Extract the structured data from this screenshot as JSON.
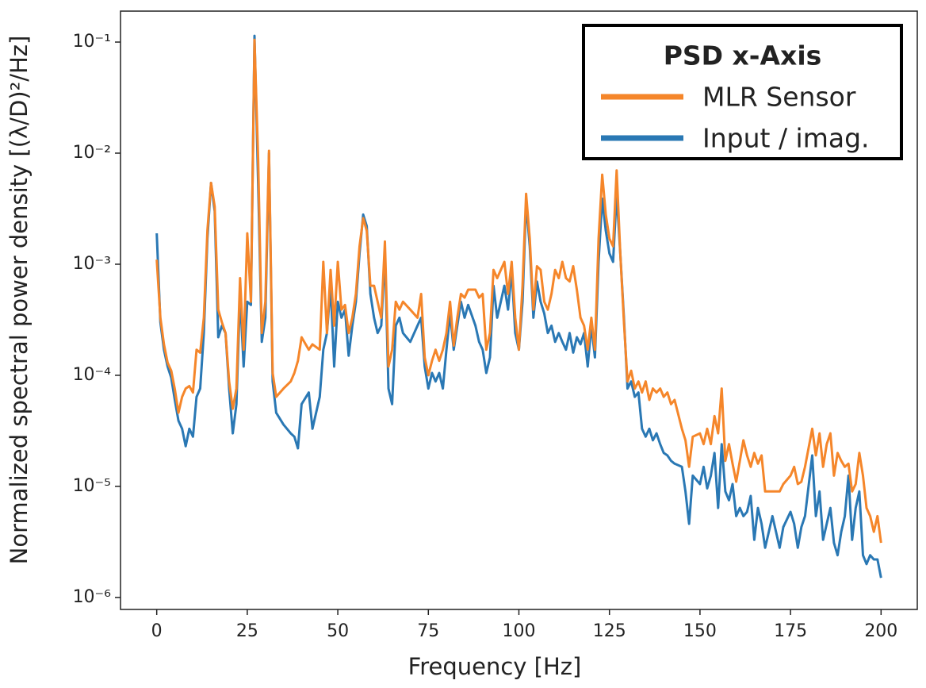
{
  "chart_data": {
    "type": "line",
    "x_label": "Frequency [Hz]",
    "y_label": "Normalized spectral  power density [(λ/D)²/Hz]",
    "legend_title": "PSD x-Axis",
    "legend": "upper right",
    "log_y": true,
    "xlim": [
      -10,
      210
    ],
    "ylim": [
      7.8e-07,
      0.19
    ],
    "xticks": [
      0,
      25,
      50,
      75,
      100,
      125,
      150,
      175,
      200
    ],
    "yticks": [
      {
        "value": 1e-06,
        "label": "10⁻⁶"
      },
      {
        "value": 1e-05,
        "label": "10⁻⁵"
      },
      {
        "value": 0.0001,
        "label": "10⁻⁴"
      },
      {
        "value": 0.001,
        "label": "10⁻³"
      },
      {
        "value": 0.01,
        "label": "10⁻²"
      },
      {
        "value": 0.1,
        "label": "10⁻¹"
      }
    ],
    "x": [
      0,
      1,
      2,
      3,
      4,
      5,
      6,
      7,
      8,
      9,
      10,
      11,
      12,
      13,
      14,
      15,
      16,
      17,
      18,
      19,
      20,
      21,
      22,
      23,
      24,
      25,
      26,
      27,
      28,
      29,
      30,
      31,
      32,
      33,
      35,
      37,
      38,
      39,
      40,
      42,
      43,
      45,
      46,
      47,
      48,
      49,
      50,
      51,
      52,
      53,
      54,
      55,
      56,
      57,
      58,
      59,
      60,
      61,
      62,
      63,
      64,
      65,
      66,
      67,
      68,
      70,
      72,
      73,
      74,
      75,
      76,
      77,
      78,
      79,
      80,
      81,
      82,
      83,
      84,
      85,
      86,
      88,
      89,
      90,
      91,
      92,
      93,
      94,
      95,
      96,
      97,
      98,
      99,
      100,
      101,
      102,
      103,
      104,
      105,
      106,
      107,
      108,
      109,
      110,
      111,
      112,
      113,
      114,
      115,
      116,
      117,
      118,
      119,
      120,
      121,
      122,
      123,
      124,
      125,
      126,
      127,
      128,
      129,
      130,
      131,
      132,
      133,
      134,
      135,
      136,
      137,
      138,
      139,
      140,
      141,
      142,
      143,
      145,
      146,
      147,
      148,
      150,
      151,
      152,
      153,
      154,
      155,
      156,
      157,
      158,
      159,
      160,
      161,
      162,
      163,
      164,
      165,
      166,
      167,
      168,
      170,
      172,
      173,
      175,
      176,
      177,
      178,
      179,
      181,
      182,
      183,
      184,
      185,
      186,
      187,
      188,
      189,
      190,
      191,
      192,
      193,
      194,
      195,
      196,
      197,
      198,
      199,
      200
    ],
    "series": [
      {
        "name": "MLR Sensor",
        "color": "#f5862a",
        "values": [
          0.0011,
          0.00033,
          0.00019,
          0.00013,
          0.00011,
          7.5e-05,
          4.6e-05,
          6.4e-05,
          7.6e-05,
          8e-05,
          7e-05,
          0.00017,
          0.00016,
          0.00033,
          0.002,
          0.0054,
          0.0033,
          0.00039,
          0.0003,
          0.00024,
          8.8e-05,
          5e-05,
          7.6e-05,
          0.00075,
          0.00017,
          0.0019,
          0.00046,
          0.105,
          0.0089,
          0.00024,
          0.00046,
          0.0105,
          0.000105,
          6.4e-05,
          7.6e-05,
          8.8e-05,
          0.000105,
          0.000135,
          0.00022,
          0.00017,
          0.00019,
          0.00017,
          0.00105,
          0.00024,
          0.00089,
          0.00028,
          0.00105,
          0.00039,
          0.00043,
          0.00024,
          0.00033,
          0.00054,
          0.00145,
          0.0026,
          0.002,
          0.00064,
          0.00064,
          0.00046,
          0.00033,
          0.0016,
          0.00012,
          0.00017,
          0.00046,
          0.00039,
          0.00046,
          0.00039,
          0.00033,
          0.00054,
          0.000145,
          0.0001,
          0.000135,
          0.00017,
          0.000135,
          0.00017,
          0.00024,
          0.00046,
          0.000185,
          0.00033,
          0.00054,
          0.0005,
          0.00059,
          0.00059,
          0.0005,
          0.00054,
          0.00017,
          0.00024,
          0.00089,
          0.00075,
          0.00089,
          0.00105,
          0.00054,
          0.00105,
          0.00033,
          0.00017,
          0.00064,
          0.0043,
          0.0017,
          0.00039,
          0.00096,
          0.00089,
          0.00046,
          0.00039,
          0.00054,
          0.00089,
          0.00075,
          0.00105,
          0.00075,
          0.0007,
          0.00096,
          0.00059,
          0.00033,
          0.00028,
          0.00017,
          0.00033,
          0.00017,
          0.0017,
          0.0064,
          0.0028,
          0.0017,
          0.00145,
          0.007,
          0.00125,
          0.0003,
          8.8e-05,
          0.00011,
          7.6e-05,
          8.8e-05,
          7e-05,
          8.8e-05,
          6e-05,
          7.6e-05,
          7e-05,
          7.6e-05,
          6.4e-05,
          7e-05,
          5.5e-05,
          6e-05,
          3.3e-05,
          2.6e-05,
          1.5e-05,
          2.8e-05,
          3e-05,
          2.4e-05,
          3.3e-05,
          2.4e-05,
          4.3e-05,
          3e-05,
          7.6e-05,
          1.7e-05,
          2.4e-05,
          1.6e-05,
          1.1e-05,
          1.7e-05,
          2.6e-05,
          1.9e-05,
          1.5e-05,
          2e-05,
          1.6e-05,
          1.9e-05,
          9e-06,
          9e-06,
          9e-06,
          1.05e-05,
          1.25e-05,
          1.5e-05,
          1.05e-05,
          1.1e-05,
          1.5e-05,
          3.3e-05,
          1.9e-05,
          3e-05,
          1.5e-05,
          2.4e-05,
          3e-05,
          1.25e-05,
          2e-05,
          1.7e-05,
          1.5e-05,
          1.6e-05,
          9e-06,
          1.05e-05,
          2e-05,
          1.25e-05,
          6.4e-06,
          5.4e-06,
          3.9e-06,
          5.4e-06,
          3.1e-06
        ]
      },
      {
        "name": "Input / imag.",
        "color": "#2a78b4",
        "values": [
          0.0019,
          0.0003,
          0.00017,
          0.00012,
          9.5e-05,
          6e-05,
          3.9e-05,
          3.3e-05,
          2.3e-05,
          3.3e-05,
          2.8e-05,
          6.4e-05,
          7.6e-05,
          0.00024,
          0.0017,
          0.0054,
          0.003,
          0.00022,
          0.00028,
          0.00024,
          7.6e-05,
          3e-05,
          5.5e-05,
          0.00054,
          0.00012,
          0.00046,
          0.00043,
          0.114,
          0.0054,
          0.0002,
          0.00033,
          0.01,
          8.8e-05,
          4.6e-05,
          3.6e-05,
          3e-05,
          2.8e-05,
          2.2e-05,
          5.5e-05,
          7e-05,
          3.3e-05,
          6.4e-05,
          0.00017,
          0.00024,
          0.00064,
          0.00012,
          0.00046,
          0.00033,
          0.00039,
          0.00015,
          0.00028,
          0.00046,
          0.00125,
          0.0028,
          0.0022,
          0.00054,
          0.00033,
          0.00024,
          0.00028,
          0.00125,
          7.6e-05,
          5.5e-05,
          0.00028,
          0.00033,
          0.00024,
          0.0002,
          0.00028,
          0.00033,
          0.00012,
          7.6e-05,
          0.000105,
          8.8e-05,
          0.000105,
          7.6e-05,
          0.00017,
          0.00036,
          0.00017,
          0.00028,
          0.00046,
          0.00033,
          0.00043,
          0.00028,
          0.0002,
          0.00017,
          0.000105,
          0.000145,
          0.00064,
          0.00033,
          0.00046,
          0.00064,
          0.00039,
          0.00089,
          0.00024,
          0.00017,
          0.00046,
          0.0036,
          0.00145,
          0.00033,
          0.0007,
          0.00046,
          0.00036,
          0.00024,
          0.00028,
          0.0002,
          0.00024,
          0.0002,
          0.00017,
          0.00024,
          0.00016,
          0.00022,
          0.00019,
          0.00024,
          0.00012,
          0.00028,
          0.000145,
          0.00105,
          0.0039,
          0.002,
          0.00125,
          0.00105,
          0.0043,
          0.00125,
          0.00033,
          7.6e-05,
          8.8e-05,
          6.4e-05,
          7e-05,
          3.3e-05,
          2.8e-05,
          3.3e-05,
          2.6e-05,
          3e-05,
          2.4e-05,
          2e-05,
          1.9e-05,
          1.7e-05,
          1.6e-05,
          1.5e-05,
          9e-06,
          4.6e-06,
          1.25e-05,
          1.05e-05,
          1.5e-05,
          9.6e-06,
          1.25e-05,
          2e-05,
          6.4e-06,
          2.4e-05,
          9e-06,
          7.5e-06,
          1.05e-05,
          5.4e-06,
          6.4e-06,
          5.4e-06,
          5.9e-06,
          8.2e-06,
          3.3e-06,
          6.4e-06,
          4.6e-06,
          2.8e-06,
          5.4e-06,
          2.8e-06,
          4.3e-06,
          5.9e-06,
          4.6e-06,
          2.8e-06,
          4.3e-06,
          5.4e-06,
          1.9e-05,
          5.4e-06,
          9e-06,
          3.3e-06,
          4.6e-06,
          6.4e-06,
          3.1e-06,
          2.4e-06,
          3.9e-06,
          5.4e-06,
          1.25e-05,
          3.3e-06,
          6.4e-06,
          9e-06,
          2.4e-06,
          2e-06,
          2.4e-06,
          2.2e-06,
          2.2e-06,
          1.5e-06
        ]
      }
    ]
  }
}
